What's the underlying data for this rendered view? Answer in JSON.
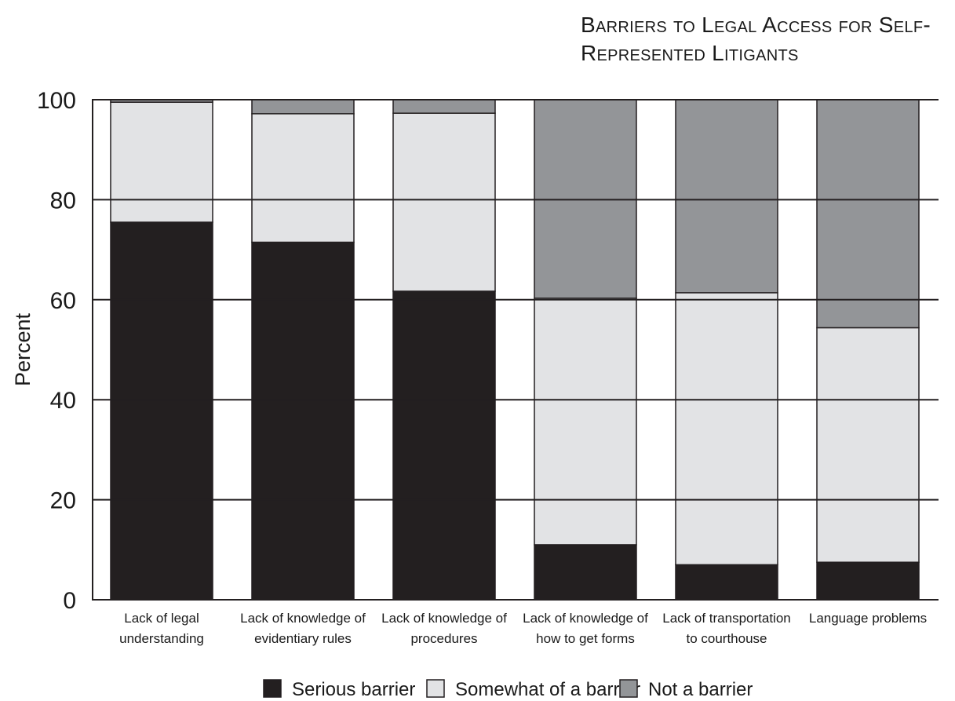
{
  "chart_data": {
    "type": "bar",
    "stacked": true,
    "title": "Barriers to Legal Access for Self-Represented Litigants",
    "ylabel": "Percent",
    "xlabel": "",
    "ylim": [
      0,
      100
    ],
    "yticks": [
      "0",
      "20",
      "40",
      "60",
      "80",
      "100"
    ],
    "grid": true,
    "legend_position": "bottom",
    "categories": [
      [
        "Lack of legal",
        "understanding"
      ],
      [
        "Lack of knowledge of",
        "evidentiary rules"
      ],
      [
        "Lack of knowledge of",
        "procedures"
      ],
      [
        "Lack of knowledge of",
        "how to get forms"
      ],
      [
        "Lack of transportation",
        "to courthouse"
      ],
      [
        "Language problems"
      ]
    ],
    "series": [
      {
        "name": "Serious barrier",
        "color": "#231f20",
        "values": [
          75.5,
          71.5,
          61.7,
          11,
          7,
          7.5
        ]
      },
      {
        "name": "Somewhat of a barrier",
        "color": "#e2e3e5",
        "values": [
          24,
          25.7,
          35.6,
          49.3,
          54.4,
          46.9
        ]
      },
      {
        "name": "Not a barrier",
        "color": "#939598",
        "values": [
          0.5,
          2.8,
          2.7,
          39.7,
          38.6,
          45.6
        ]
      }
    ]
  }
}
